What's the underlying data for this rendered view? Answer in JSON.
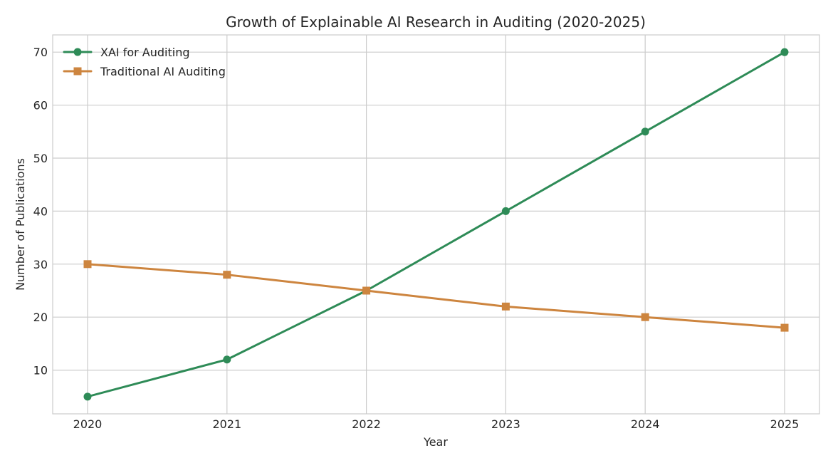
{
  "chart_data": {
    "type": "line",
    "title": "Growth of Explainable AI Research in Auditing (2020-2025)",
    "xlabel": "Year",
    "ylabel": "Number of Publications",
    "x": [
      "2020",
      "2021",
      "2022",
      "2023",
      "2024",
      "2025"
    ],
    "yticks": [
      "10",
      "20",
      "30",
      "40",
      "50",
      "60",
      "70"
    ],
    "ylim": [
      1.75,
      73.25
    ],
    "grid": true,
    "legend_position": "top-left",
    "series": [
      {
        "name": "XAI for Auditing",
        "values": [
          5,
          12,
          25,
          40,
          55,
          70
        ],
        "color": "#2e8b57",
        "marker": "circle"
      },
      {
        "name": "Traditional AI Auditing",
        "values": [
          30,
          28,
          25,
          22,
          20,
          18
        ],
        "color": "#cd853f",
        "marker": "square"
      }
    ]
  }
}
